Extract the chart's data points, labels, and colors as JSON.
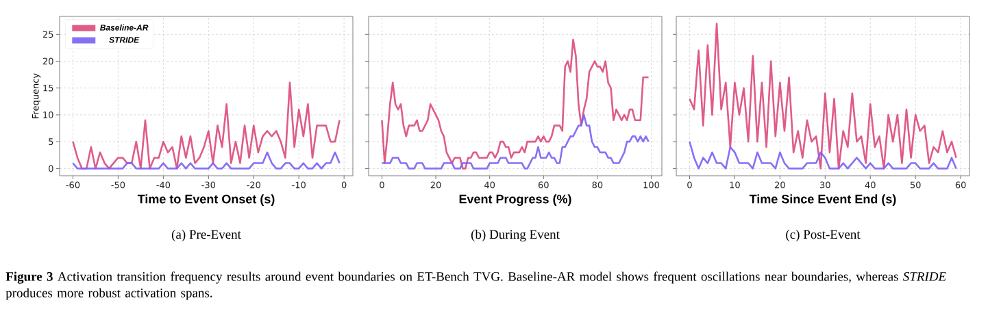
{
  "chart_data": [
    {
      "type": "line",
      "title": "(a) Pre-Event",
      "xlabel": "Time to Event Onset (s)",
      "ylabel": "Frequency",
      "x": [
        -60,
        -59,
        -58,
        -57,
        -56,
        -55,
        -54,
        -53,
        -52,
        -51,
        -50,
        -49,
        -48,
        -47,
        -46,
        -45,
        -44,
        -43,
        -42,
        -41,
        -40,
        -39,
        -38,
        -37,
        -36,
        -35,
        -34,
        -33,
        -32,
        -31,
        -30,
        -29,
        -28,
        -27,
        -26,
        -25,
        -24,
        -23,
        -22,
        -21,
        -20,
        -19,
        -18,
        -17,
        -16,
        -15,
        -14,
        -13,
        -12,
        -11,
        -10,
        -9,
        -8,
        -7,
        -6,
        -5,
        -4,
        -3,
        -2,
        -1
      ],
      "series": [
        {
          "name": "Baseline-AR",
          "color": "#dc4a7b",
          "values": [
            5,
            2,
            0,
            0,
            4,
            0,
            3,
            1,
            0,
            1,
            2,
            2,
            1,
            1,
            5,
            0,
            9,
            0,
            2,
            2,
            5,
            3,
            4,
            0,
            6,
            2,
            6,
            1,
            2,
            4,
            7,
            1,
            8,
            4,
            12,
            1,
            5,
            1,
            8,
            2,
            8,
            3,
            6,
            7,
            6,
            7,
            5,
            2,
            16,
            4,
            11,
            6,
            12,
            2,
            8,
            8,
            8,
            5,
            5,
            9
          ]
        },
        {
          "name": "STRIDE",
          "color": "#7b61f5",
          "values": [
            1,
            0,
            0,
            0,
            0,
            0,
            0,
            0,
            0,
            0,
            0,
            0,
            1,
            1,
            0,
            0,
            0,
            0,
            0,
            0,
            1,
            0,
            0,
            0,
            1,
            0,
            1,
            0,
            0,
            0,
            0,
            1,
            0,
            0,
            1,
            0,
            0,
            0,
            0,
            0,
            1,
            1,
            1,
            3,
            1,
            0,
            0,
            1,
            1,
            0,
            0,
            1,
            0,
            0,
            1,
            0,
            1,
            1,
            3,
            1
          ]
        }
      ],
      "xlim": [
        -62.95,
        1.95
      ],
      "ylim": [
        -1.35,
        28.35
      ],
      "xticks": [
        -60,
        -50,
        -40,
        -30,
        -20,
        -10,
        0
      ],
      "yticks": [
        0,
        5,
        10,
        15,
        20,
        25
      ],
      "grid": true,
      "legend": "top left",
      "annotations": [
        "**Figure 3**  Activation transition frequency results around event boundaries on ET-Bench TVG. Baseline-AR model shows frequent oscillations near boundaries, whereas *STRIDE* produces more robust activation spans."
      ]
    },
    {
      "type": "line",
      "title": "(b) During Event",
      "xlabel": "Event Progress (%)",
      "x": [
        0,
        1,
        2,
        3,
        4,
        5,
        6,
        7,
        8,
        9,
        10,
        11,
        12,
        13,
        14,
        15,
        16,
        17,
        18,
        19,
        20,
        21,
        22,
        23,
        24,
        25,
        26,
        27,
        28,
        29,
        30,
        31,
        32,
        33,
        34,
        35,
        36,
        37,
        38,
        39,
        40,
        41,
        42,
        43,
        44,
        45,
        46,
        47,
        48,
        49,
        50,
        51,
        52,
        53,
        54,
        55,
        56,
        57,
        58,
        59,
        60,
        61,
        62,
        63,
        64,
        65,
        66,
        67,
        68,
        69,
        70,
        71,
        72,
        73,
        74,
        75,
        76,
        77,
        78,
        79,
        80,
        81,
        82,
        83,
        84,
        85,
        86,
        87,
        88,
        89,
        90,
        91,
        92,
        93,
        94,
        95,
        96,
        97,
        98,
        99
      ],
      "series": [
        {
          "color": "#dc4a7b",
          "values": [
            9,
            1,
            6,
            12,
            16,
            12,
            11,
            12,
            8,
            6,
            8,
            8,
            8,
            9,
            7,
            7,
            8,
            9,
            12,
            11,
            10,
            9,
            7,
            6,
            3,
            2,
            1,
            2,
            2,
            2,
            0,
            0,
            2,
            2,
            3,
            3,
            2,
            2,
            2,
            2,
            3,
            3,
            2,
            3,
            5,
            5,
            4,
            4,
            2,
            3,
            3,
            3,
            4,
            3,
            5,
            5,
            5,
            5,
            6,
            5,
            6,
            5,
            5,
            6,
            8,
            8,
            8,
            7,
            19,
            20,
            18,
            24,
            21,
            12,
            8,
            11,
            13,
            18,
            19,
            20,
            19,
            19,
            18,
            20,
            16,
            15,
            9,
            11,
            10,
            9,
            10,
            9,
            11,
            11,
            9,
            9,
            9,
            17,
            17,
            17
          ]
        },
        {
          "color": "#7b61f5",
          "values": [
            1,
            1,
            1,
            1,
            2,
            2,
            2,
            1,
            1,
            1,
            0,
            0,
            0,
            1,
            1,
            1,
            0,
            0,
            0,
            0,
            0,
            0,
            0,
            1,
            1,
            1,
            1,
            0,
            0,
            0,
            1,
            1,
            1,
            1,
            0,
            0,
            0,
            0,
            0,
            0,
            1,
            1,
            1,
            1,
            2,
            2,
            2,
            1,
            1,
            1,
            1,
            1,
            1,
            0,
            0,
            1,
            2,
            2,
            4,
            2,
            2,
            2,
            3,
            2,
            2,
            1,
            1,
            4,
            4,
            5,
            6,
            6,
            7,
            8,
            8,
            10,
            8,
            8,
            5,
            4,
            4,
            3,
            3,
            3,
            2,
            2,
            1,
            1,
            1,
            2,
            3,
            5,
            5,
            6,
            6,
            5,
            6,
            5,
            6,
            5
          ]
        }
      ],
      "xlim": [
        -4.95,
        103.95
      ],
      "ylim": [
        -1.35,
        28.35
      ],
      "xticks": [
        0,
        20,
        40,
        60,
        80,
        100
      ],
      "yticks": [
        0,
        5,
        10,
        15,
        20,
        25
      ],
      "grid": true,
      "tick_labels": "x"
    },
    {
      "type": "line",
      "title": "(c) Post-Event",
      "xlabel": "Time Since Event End (s)",
      "x": [
        0,
        1,
        2,
        3,
        4,
        5,
        6,
        7,
        8,
        9,
        10,
        11,
        12,
        13,
        14,
        15,
        16,
        17,
        18,
        19,
        20,
        21,
        22,
        23,
        24,
        25,
        26,
        27,
        28,
        29,
        30,
        31,
        32,
        33,
        34,
        35,
        36,
        37,
        38,
        39,
        40,
        41,
        42,
        43,
        44,
        45,
        46,
        47,
        48,
        49,
        50,
        51,
        52,
        53,
        54,
        55,
        56,
        57,
        58,
        59
      ],
      "series": [
        {
          "color": "#dc4a7b",
          "values": [
            13,
            11,
            22,
            8,
            23,
            10,
            27,
            11,
            16,
            4,
            16,
            10,
            15,
            5,
            21,
            5,
            16,
            4,
            20,
            6,
            16,
            7,
            17,
            3,
            7,
            2,
            9,
            5,
            6,
            0,
            14,
            3,
            13,
            0,
            7,
            4,
            14,
            5,
            6,
            1,
            12,
            4,
            6,
            0,
            10,
            5,
            10,
            1,
            11,
            2,
            10,
            7,
            8,
            1,
            4,
            3,
            7,
            3,
            5,
            2
          ]
        },
        {
          "color": "#7b61f5",
          "values": [
            5,
            2,
            0,
            2,
            1,
            3,
            1,
            1,
            0,
            4,
            3,
            1,
            1,
            1,
            0,
            3,
            1,
            1,
            1,
            0,
            3,
            1,
            0,
            0,
            0,
            0,
            1,
            1,
            1,
            3,
            2,
            0,
            0,
            0,
            1,
            0,
            1,
            2,
            1,
            0,
            1,
            0,
            0,
            0,
            1,
            0,
            0,
            0,
            0,
            1,
            1,
            0,
            0,
            0,
            1,
            0,
            0,
            0,
            2,
            0
          ]
        }
      ],
      "xlim": [
        -2.95,
        61.95
      ],
      "ylim": [
        -1.35,
        28.35
      ],
      "xticks": [
        0,
        10,
        20,
        30,
        40,
        50,
        60
      ],
      "yticks": [
        0,
        5,
        10,
        15,
        20,
        25
      ],
      "grid": true,
      "tick_labels": "x"
    }
  ]
}
